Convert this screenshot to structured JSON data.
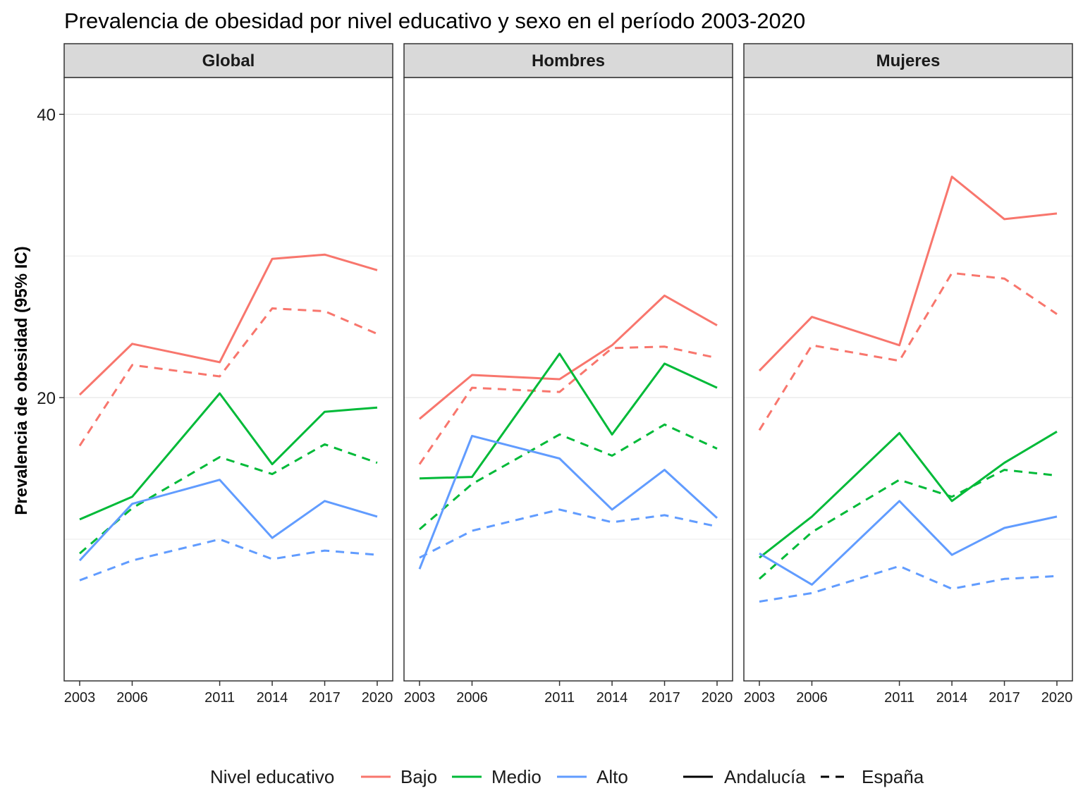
{
  "chart_data": {
    "type": "line",
    "title": "Prevalencia de obesidad por nivel educativo y sexo en el período 2003-2020",
    "xlabel": "",
    "ylabel": "Prevalencia de obesidad (95% IC)",
    "x": [
      2003,
      2006,
      2011,
      2014,
      2017,
      2020
    ],
    "x_tick_labels": [
      "2003",
      "2006",
      "2011",
      "2014",
      "2017",
      "2020"
    ],
    "y_tick_values": [
      20,
      40
    ],
    "y_tick_labels": [
      "20",
      "40"
    ],
    "ylim": [
      0,
      42.6
    ],
    "grid": true,
    "legend_position": "bottom",
    "colors": {
      "Bajo": "#F8766D",
      "Medio": "#00BA38",
      "Alto": "#619CFF"
    },
    "legend": {
      "color_title": "Nivel educativo",
      "color_items": [
        "Bajo",
        "Medio",
        "Alto"
      ],
      "linetype_items": [
        {
          "label": "Andalucía",
          "dash": "solid"
        },
        {
          "label": "España",
          "dash": "dashed"
        }
      ]
    },
    "panels": [
      {
        "name": "Global",
        "series": [
          {
            "educ": "Bajo",
            "region": "Andalucía",
            "values": [
              20.2,
              23.8,
              22.5,
              29.8,
              30.1,
              29.0
            ]
          },
          {
            "educ": "Bajo",
            "region": "España",
            "values": [
              16.6,
              22.3,
              21.5,
              26.3,
              26.1,
              24.5
            ]
          },
          {
            "educ": "Medio",
            "region": "Andalucía",
            "values": [
              11.4,
              13.0,
              20.3,
              15.3,
              19.0,
              19.3
            ]
          },
          {
            "educ": "Medio",
            "region": "España",
            "values": [
              9.0,
              12.2,
              15.8,
              14.6,
              16.7,
              15.4
            ]
          },
          {
            "educ": "Alto",
            "region": "Andalucía",
            "values": [
              8.5,
              12.5,
              14.2,
              10.1,
              12.7,
              11.6
            ]
          },
          {
            "educ": "Alto",
            "region": "España",
            "values": [
              7.1,
              8.5,
              10.0,
              8.6,
              9.2,
              8.9
            ]
          }
        ]
      },
      {
        "name": "Hombres",
        "series": [
          {
            "educ": "Bajo",
            "region": "Andalucía",
            "values": [
              18.5,
              21.6,
              21.3,
              23.7,
              27.2,
              25.1
            ]
          },
          {
            "educ": "Bajo",
            "region": "España",
            "values": [
              15.3,
              20.7,
              20.4,
              23.5,
              23.6,
              22.8
            ]
          },
          {
            "educ": "Medio",
            "region": "Andalucía",
            "values": [
              14.3,
              14.4,
              23.1,
              17.4,
              22.4,
              20.7
            ]
          },
          {
            "educ": "Medio",
            "region": "España",
            "values": [
              10.7,
              13.9,
              17.4,
              15.9,
              18.1,
              16.4
            ]
          },
          {
            "educ": "Alto",
            "region": "Andalucía",
            "values": [
              7.9,
              17.3,
              15.7,
              12.1,
              14.9,
              11.5
            ]
          },
          {
            "educ": "Alto",
            "region": "España",
            "values": [
              8.7,
              10.6,
              12.1,
              11.2,
              11.7,
              10.9
            ]
          }
        ]
      },
      {
        "name": "Mujeres",
        "series": [
          {
            "educ": "Bajo",
            "region": "Andalucía",
            "values": [
              21.9,
              25.7,
              23.7,
              35.6,
              32.6,
              33.0
            ]
          },
          {
            "educ": "Bajo",
            "region": "España",
            "values": [
              17.7,
              23.7,
              22.6,
              28.8,
              28.4,
              25.9
            ]
          },
          {
            "educ": "Medio",
            "region": "Andalucía",
            "values": [
              8.7,
              11.6,
              17.5,
              12.7,
              15.4,
              17.6
            ]
          },
          {
            "educ": "Medio",
            "region": "España",
            "values": [
              7.2,
              10.5,
              14.2,
              13.0,
              14.9,
              14.5
            ]
          },
          {
            "educ": "Alto",
            "region": "Andalucía",
            "values": [
              9.0,
              6.8,
              12.7,
              8.9,
              10.8,
              11.6
            ]
          },
          {
            "educ": "Alto",
            "region": "España",
            "values": [
              5.6,
              6.2,
              8.1,
              6.5,
              7.2,
              7.4
            ]
          }
        ]
      }
    ]
  }
}
